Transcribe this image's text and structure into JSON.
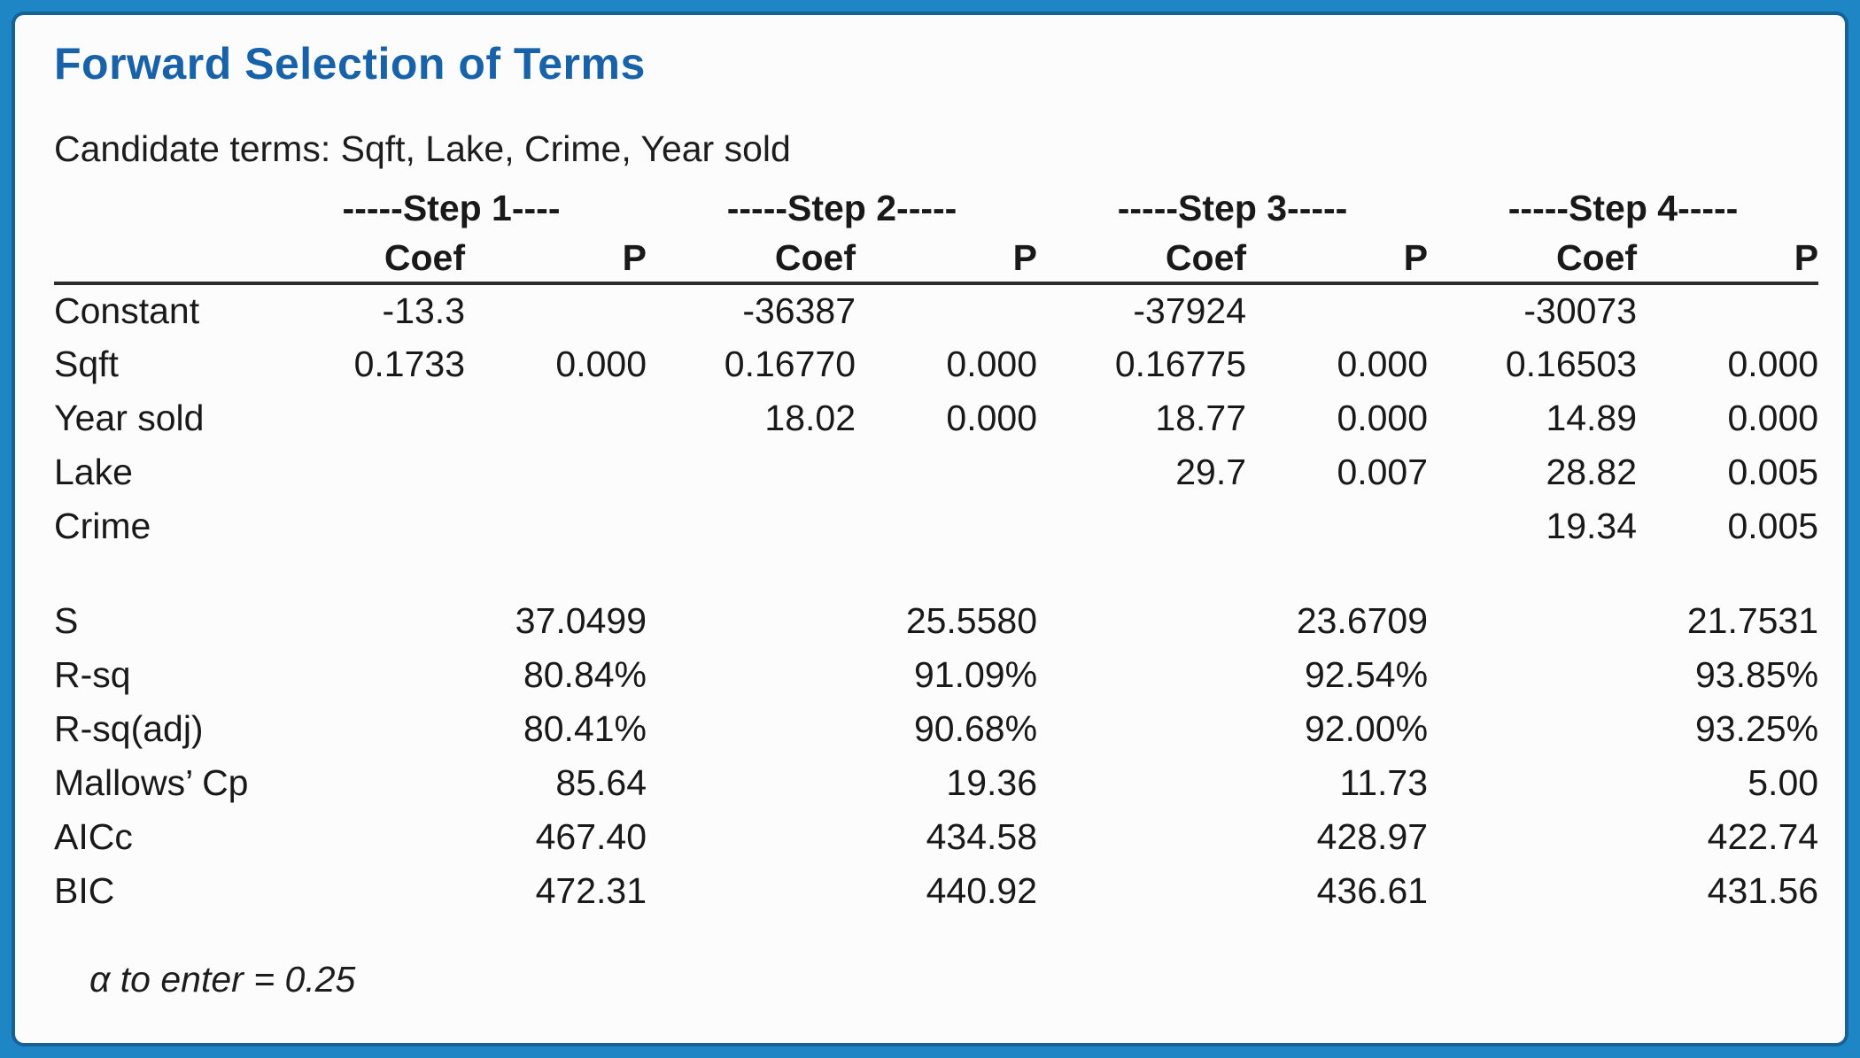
{
  "colors": {
    "frame_blue": "#1f86c6",
    "frame_inner_blue": "#176199",
    "title_blue": "#1862aa"
  },
  "header": {
    "title": "Forward Selection of Terms",
    "candidate_line": "Candidate terms: Sqft, Lake, Crime, Year sold"
  },
  "table": {
    "step_headers": [
      "-----Step 1----",
      "-----Step 2-----",
      "-----Step 3-----",
      "-----Step 4-----"
    ],
    "col_headers": {
      "coef": "Coef",
      "p": "P"
    },
    "term_rows": [
      {
        "label": "Constant",
        "cells": [
          "-13.3",
          "",
          "-36387",
          "",
          "-37924",
          "",
          "-30073",
          ""
        ]
      },
      {
        "label": "Sqft",
        "cells": [
          "0.1733",
          "0.000",
          "0.16770",
          "0.000",
          "0.16775",
          "0.000",
          "0.16503",
          "0.000"
        ]
      },
      {
        "label": "Year sold",
        "cells": [
          "",
          "",
          "18.02",
          "0.000",
          "18.77",
          "0.000",
          "14.89",
          "0.000"
        ]
      },
      {
        "label": "Lake",
        "cells": [
          "",
          "",
          "",
          "",
          "29.7",
          "0.007",
          "28.82",
          "0.005"
        ]
      },
      {
        "label": "Crime",
        "cells": [
          "",
          "",
          "",
          "",
          "",
          "",
          "19.34",
          "0.005"
        ]
      }
    ],
    "stat_rows": [
      {
        "label": "S",
        "values": [
          "37.0499",
          "25.5580",
          "23.6709",
          "21.7531"
        ]
      },
      {
        "label": "R-sq",
        "values": [
          "80.84%",
          "91.09%",
          "92.54%",
          "93.85%"
        ]
      },
      {
        "label": "R-sq(adj)",
        "values": [
          "80.41%",
          "90.68%",
          "92.00%",
          "93.25%"
        ]
      },
      {
        "label": "Mallows’ Cp",
        "values": [
          "85.64",
          "19.36",
          "11.73",
          "5.00"
        ]
      },
      {
        "label": "AICc",
        "values": [
          "467.40",
          "434.58",
          "428.97",
          "422.74"
        ]
      },
      {
        "label": "BIC",
        "values": [
          "472.31",
          "440.92",
          "436.61",
          "431.56"
        ]
      }
    ]
  },
  "footer": {
    "alpha_note": "α to enter = 0.25"
  }
}
